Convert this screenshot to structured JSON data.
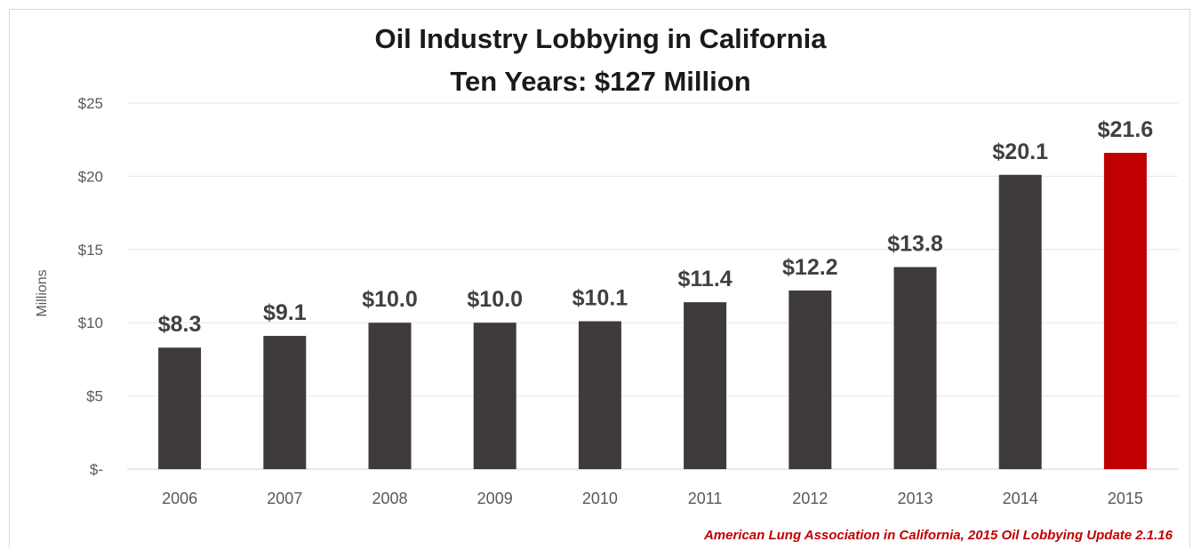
{
  "chart_data": {
    "type": "bar",
    "title": "Oil Industry Lobbying in California",
    "subtitle": "Ten Years: $127 Million",
    "xlabel": "",
    "ylabel": "Millions",
    "categories": [
      "2006",
      "2007",
      "2008",
      "2009",
      "2010",
      "2011",
      "2012",
      "2013",
      "2014",
      "2015"
    ],
    "values": [
      8.3,
      9.1,
      10.0,
      10.0,
      10.1,
      11.4,
      12.2,
      13.8,
      20.1,
      21.6
    ],
    "data_labels": [
      "$8.3",
      "$9.1",
      "$10.0",
      "$10.0",
      "$10.1",
      "$11.4",
      "$12.2",
      "$13.8",
      "$20.1",
      "$21.6"
    ],
    "yticks": [
      0,
      5,
      10,
      15,
      20,
      25
    ],
    "ytick_labels": [
      "$-",
      "$5",
      "$10",
      "$15",
      "$20",
      "$25"
    ],
    "ylim": [
      0,
      25
    ],
    "grid": true,
    "legend": "none",
    "bar_color": "#3f3b3a",
    "highlight_color": "#c00000",
    "highlight_category": "2015",
    "source": "American Lung Association in California, 2015 Oil Lobbying Update 2.1.16"
  }
}
